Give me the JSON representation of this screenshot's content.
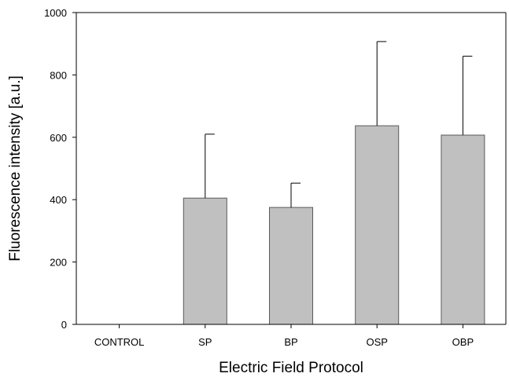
{
  "chart_data": {
    "type": "bar",
    "title": "",
    "xlabel": "Electric Field Protocol",
    "ylabel": "Fluorescence intensity [a.u.]",
    "categories": [
      "CONTROL",
      "SP",
      "BP",
      "OSP",
      "OBP"
    ],
    "series": [
      {
        "values": [
          0,
          405,
          375,
          637,
          607
        ],
        "error_upper": [
          0,
          205,
          78,
          270,
          253
        ]
      }
    ],
    "ylim": [
      0,
      1000
    ],
    "yticks": [
      0,
      200,
      400,
      600,
      800,
      1000
    ],
    "ytick_labels": [
      "0",
      "200",
      "400",
      "600",
      "800",
      "1000"
    ],
    "grid": false,
    "legend": "none",
    "bar_color": "#c0c0c0",
    "bar_edge_color": "#5a5a5a",
    "error_bar_color": "#000000"
  }
}
